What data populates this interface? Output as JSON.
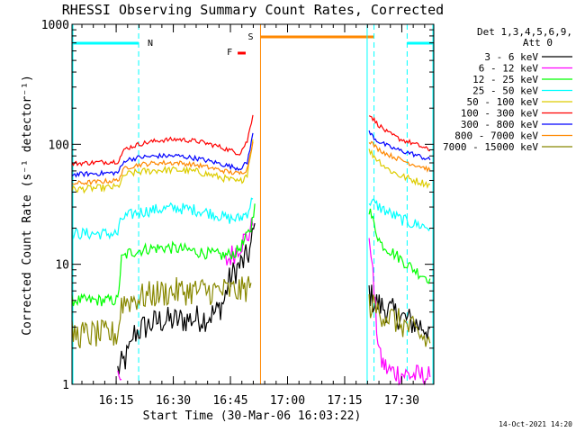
{
  "chart_data": {
    "type": "line",
    "title": "RHESSI Observing Summary Count Rates, Corrected",
    "xlabel": "Start Time (30-Mar-06 16:03:22)",
    "ylabel": "Corrected Count Rate (s⁻¹ detector⁻¹)",
    "yscale": "log",
    "ylim": [
      1,
      1000
    ],
    "xlim_minutes": [
      0,
      95
    ],
    "xticks": [
      {
        "label": "16:15",
        "t": 11.6
      },
      {
        "label": "16:30",
        "t": 26.6
      },
      {
        "label": "16:45",
        "t": 41.6
      },
      {
        "label": "17:00",
        "t": 56.6
      },
      {
        "label": "17:15",
        "t": 71.6
      },
      {
        "label": "17:30",
        "t": 86.6
      }
    ],
    "yticks": [
      {
        "label": "1",
        "v": 1
      },
      {
        "label": "10",
        "v": 10
      },
      {
        "label": "100",
        "v": 100
      },
      {
        "label": "1000",
        "v": 1000
      }
    ],
    "legend_title": [
      "Det 1,3,4,5,6,9,",
      "Att 0"
    ],
    "legend_position": "right",
    "series": [
      {
        "name": "3 - 6 keV",
        "color": "#000000",
        "segments": [
          [
            [
              12,
              1.3
            ],
            [
              14,
              1.6
            ],
            [
              15.5,
              2.0
            ],
            [
              16,
              2.6
            ],
            [
              19,
              3.0
            ],
            [
              23,
              3.4
            ],
            [
              27,
              3.4
            ],
            [
              31,
              3.5
            ],
            [
              35,
              3.6
            ],
            [
              38,
              4.0
            ],
            [
              40,
              5.0
            ],
            [
              41,
              7.0
            ],
            [
              43,
              9.0
            ],
            [
              45,
              10.5
            ],
            [
              46,
              11.5
            ],
            [
              47,
              14
            ],
            [
              48,
              22
            ]
          ],
          [
            [
              78,
              6
            ],
            [
              79,
              5
            ],
            [
              81,
              4.5
            ],
            [
              86,
              3.7
            ],
            [
              90,
              3.2
            ],
            [
              94,
              2.9
            ]
          ]
        ]
      },
      {
        "name": "6 - 12 keV",
        "color": "#ff00ff",
        "segments": [
          [
            [
              12,
              1.05
            ],
            [
              13,
              1.1
            ]
          ],
          [
            [
              40,
              10
            ],
            [
              41,
              11
            ],
            [
              42,
              12
            ],
            [
              43,
              13
            ],
            [
              44,
              14.5
            ],
            [
              46,
              17
            ],
            [
              47.5,
              21
            ]
          ],
          [
            [
              78,
              18
            ],
            [
              78.5,
              14
            ],
            [
              79,
              8
            ],
            [
              80,
              3
            ],
            [
              81,
              1.6
            ],
            [
              83,
              1.3
            ],
            [
              88,
              1.2
            ],
            [
              94,
              1.15
            ]
          ]
        ]
      },
      {
        "name": "12 - 25 keV",
        "color": "#00ff00",
        "segments": [
          [
            [
              0,
              5.0
            ],
            [
              12,
              5.0
            ],
            [
              13,
              11
            ],
            [
              15,
              12.5
            ],
            [
              20,
              13.5
            ],
            [
              25,
              13.8
            ],
            [
              30,
              13.2
            ],
            [
              35,
              12.4
            ],
            [
              40,
              11.8
            ],
            [
              43,
              12.5
            ],
            [
              45,
              15
            ],
            [
              47,
              20
            ],
            [
              48,
              32
            ]
          ],
          [
            [
              78,
              29
            ],
            [
              79,
              23
            ],
            [
              81,
              15
            ],
            [
              85,
              12
            ],
            [
              88,
              10
            ],
            [
              91,
              8.5
            ],
            [
              94,
              7.6
            ]
          ]
        ]
      },
      {
        "name": "25 - 50 keV",
        "color": "#00ffff",
        "segments": [
          [
            [
              0,
              18
            ],
            [
              12,
              18
            ],
            [
              13,
              24
            ],
            [
              17,
              27
            ],
            [
              22,
              28.5
            ],
            [
              27,
              29.5
            ],
            [
              32,
              28.5
            ],
            [
              37,
              26.5
            ],
            [
              41,
              24
            ],
            [
              44,
              24
            ],
            [
              46,
              27
            ],
            [
              47.5,
              35
            ]
          ],
          [
            [
              78,
              34
            ],
            [
              80,
              31
            ],
            [
              83,
              27
            ],
            [
              86,
              24
            ],
            [
              89,
              22
            ],
            [
              92,
              21
            ],
            [
              94,
              20
            ]
          ]
        ]
      },
      {
        "name": "50 - 100 keV",
        "color": "#ddcc00",
        "segments": [
          [
            [
              0,
              42
            ],
            [
              12,
              44
            ],
            [
              14,
              56
            ],
            [
              18,
              59
            ],
            [
              23,
              61
            ],
            [
              28,
              61
            ],
            [
              33,
              59
            ],
            [
              38,
              54
            ],
            [
              42,
              50
            ],
            [
              44,
              48
            ],
            [
              46,
              57
            ],
            [
              47.5,
              110
            ]
          ],
          [
            [
              78,
              88
            ],
            [
              80,
              76
            ],
            [
              83,
              62
            ],
            [
              86,
              55
            ],
            [
              89,
              51
            ],
            [
              92,
              48
            ],
            [
              94,
              46
            ]
          ]
        ]
      },
      {
        "name": "100 - 300 keV",
        "color": "#ff0000",
        "segments": [
          [
            [
              0,
              69
            ],
            [
              12,
              72
            ],
            [
              14,
              92
            ],
            [
              18,
              101
            ],
            [
              23,
              108
            ],
            [
              28,
              110
            ],
            [
              33,
              106
            ],
            [
              38,
              97
            ],
            [
              42,
              88
            ],
            [
              44,
              84
            ],
            [
              46,
              106
            ],
            [
              47.5,
              175
            ]
          ],
          [
            [
              78,
              180
            ],
            [
              80,
              150
            ],
            [
              83,
              124
            ],
            [
              86,
              111
            ],
            [
              89,
              103
            ],
            [
              92,
              95
            ],
            [
              94,
              88
            ]
          ]
        ]
      },
      {
        "name": "300 - 800 keV",
        "color": "#0000ff",
        "segments": [
          [
            [
              0,
              56
            ],
            [
              12,
              58
            ],
            [
              14,
              74
            ],
            [
              18,
              78
            ],
            [
              23,
              80
            ],
            [
              28,
              80
            ],
            [
              33,
              76
            ],
            [
              38,
              70
            ],
            [
              42,
              65
            ],
            [
              44,
              63
            ],
            [
              46,
              70
            ],
            [
              47.5,
              124
            ]
          ],
          [
            [
              78,
              126
            ],
            [
              80,
              108
            ],
            [
              83,
              96
            ],
            [
              86,
              89
            ],
            [
              89,
              84
            ],
            [
              92,
              78
            ],
            [
              94,
              74
            ]
          ]
        ]
      },
      {
        "name": "800 - 7000 keV",
        "color": "#ff8800",
        "segments": [
          [
            [
              0,
              47
            ],
            [
              12,
              50
            ],
            [
              14,
              64
            ],
            [
              18,
              68
            ],
            [
              23,
              70
            ],
            [
              28,
              70
            ],
            [
              33,
              67
            ],
            [
              38,
              62
            ],
            [
              42,
              58
            ],
            [
              44,
              57
            ],
            [
              46,
              62
            ],
            [
              47.5,
              105
            ]
          ],
          [
            [
              78,
              108
            ],
            [
              80,
              93
            ],
            [
              83,
              82
            ],
            [
              86,
              75
            ],
            [
              89,
              69
            ],
            [
              92,
              65
            ],
            [
              94,
              61
            ]
          ]
        ]
      },
      {
        "name": "7000 - 15000 keV",
        "color": "#888800",
        "segments": [
          [
            [
              0,
              2.6
            ],
            [
              12,
              2.6
            ],
            [
              13,
              4.8
            ],
            [
              17,
              5.2
            ],
            [
              21,
              5.6
            ],
            [
              26,
              5.9
            ],
            [
              31,
              6.0
            ],
            [
              36,
              6.0
            ],
            [
              41,
              6.0
            ],
            [
              45,
              6.0
            ],
            [
              47,
              7.0
            ]
          ],
          [
            [
              78,
              4.6
            ],
            [
              81,
              4.0
            ],
            [
              85,
              3.4
            ],
            [
              88,
              3.0
            ],
            [
              91,
              2.6
            ],
            [
              94,
              2.2
            ]
          ]
        ]
      }
    ],
    "markers": {
      "night_label": "N",
      "saa_label": "S",
      "flare_label": "F",
      "night_intervals": [
        [
          0,
          17.5
        ],
        [
          88,
          95
        ]
      ],
      "night_dash_lines": [
        17.5,
        88
      ],
      "saa_interval": [
        49.5,
        79.3
      ],
      "saa_solid_lines": [
        49.5,
        77.5
      ],
      "saa_dash_line": 79.3,
      "flare_interval": [
        43.5,
        45.6
      ]
    },
    "colors": {
      "night": "#00ffff",
      "saa": "#ff8800",
      "flare": "#ff0000"
    }
  },
  "footer": {
    "timestamp": "14-Oct-2021 14:20"
  }
}
